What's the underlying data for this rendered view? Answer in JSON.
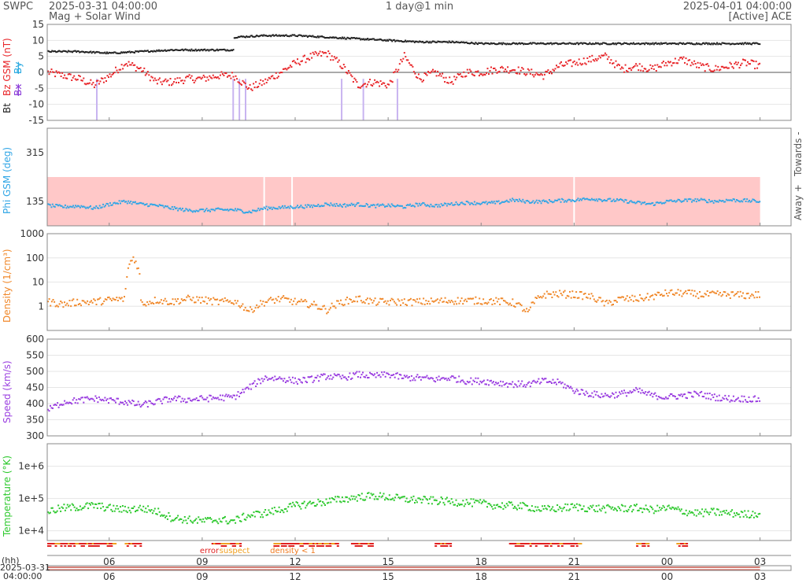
{
  "header": {
    "source": "SWPC",
    "title": "Mag + Solar Wind",
    "start_time": "2025-03-31 04:00:00",
    "range": "1 day@1 min",
    "end_time": "2025-04-01 04:00:00",
    "instrument": "[Active] ACE"
  },
  "colors": {
    "bt": "#222222",
    "bz": "#e8262a",
    "by": "#26a8e0",
    "bx": "#8a3ad8",
    "phi": "#31a6e6",
    "phi_band": "#ffc8c8",
    "density": "#f0882a",
    "speed": "#9a3ee0",
    "temperature": "#2ec92e",
    "error": "#e02020",
    "suspect": "#f0a020",
    "density_low": "#f07a20",
    "gridline": "#e6e6e6",
    "frame": "#888888"
  },
  "status_legend": {
    "error": "error",
    "suspect": "suspect",
    "density": "density < 1"
  },
  "time_axis": {
    "hh_label": "(hh)",
    "date_label": "2025-03-31",
    "time_label": "04:00:00",
    "ticks": [
      "06",
      "09",
      "12",
      "15",
      "18",
      "21",
      "00",
      "03"
    ],
    "tick_hours": [
      2,
      5,
      8,
      11,
      14,
      17,
      20,
      23
    ]
  },
  "chart_data": [
    {
      "type": "scatter",
      "id": "mag",
      "ylabel_parts": [
        "Bt",
        "Bz GSM (nT)",
        "Bx",
        "By"
      ],
      "ylim": [
        -15,
        15
      ],
      "yticks": [
        15,
        10,
        5,
        0,
        -5,
        -10,
        -15
      ],
      "series": [
        {
          "name": "Bt",
          "x": [
            0,
            1,
            2,
            3,
            4,
            5,
            6,
            6.01,
            7,
            8,
            9,
            10,
            11,
            12,
            13,
            14,
            15,
            16,
            17,
            18,
            19,
            20,
            21,
            22,
            23
          ],
          "values": [
            6.5,
            6.5,
            6,
            6.5,
            7,
            7,
            7,
            11,
            11.5,
            11.5,
            11,
            10.5,
            10,
            9.5,
            9.5,
            9,
            9,
            9,
            9,
            9,
            9,
            9,
            9,
            9,
            9
          ]
        },
        {
          "name": "Bz GSM",
          "x": [
            0,
            0.5,
            1,
            1.5,
            2,
            2.5,
            3,
            3.5,
            4,
            4.5,
            5,
            5.5,
            6,
            6.5,
            7,
            7.5,
            8,
            8.5,
            9,
            9.5,
            10,
            10.5,
            11,
            11.5,
            12,
            12.5,
            13,
            13.5,
            14,
            14.5,
            15,
            15.5,
            16,
            16.5,
            17,
            17.5,
            18,
            18.5,
            19,
            19.5,
            20,
            20.5,
            21,
            21.5,
            22,
            22.5,
            23
          ],
          "values": [
            0,
            -1,
            -2,
            -4,
            -1,
            3,
            1,
            -3,
            -3,
            -2,
            -2,
            -1,
            -1,
            -5,
            -3,
            0,
            3,
            5,
            6,
            2,
            -4,
            -3,
            -4,
            5,
            -2,
            0,
            -3,
            0,
            0,
            1,
            1,
            0,
            -1,
            2,
            3,
            4,
            5,
            1,
            2,
            1,
            3,
            4,
            2,
            1,
            2,
            3,
            2
          ]
        }
      ]
    },
    {
      "type": "scatter",
      "id": "phi",
      "ylabel": "Phi GSM (deg)",
      "right_labels": {
        "towards": "Towards -",
        "away": "Away +"
      },
      "ylim": [
        45,
        405
      ],
      "yticks": [
        315,
        135
      ],
      "band": [
        45,
        225
      ],
      "x": [
        0,
        0.5,
        1,
        1.5,
        2,
        2.5,
        3,
        3.5,
        4,
        4.5,
        5,
        5.5,
        6,
        6.5,
        7,
        7.5,
        8,
        8.5,
        9,
        9.5,
        10,
        10.5,
        11,
        11.5,
        12,
        12.5,
        13,
        13.5,
        14,
        14.5,
        15,
        15.5,
        16,
        16.5,
        17,
        17.5,
        18,
        18.5,
        19,
        19.5,
        20,
        20.5,
        21,
        21.5,
        22,
        22.5,
        23
      ],
      "values": [
        120,
        115,
        118,
        110,
        125,
        135,
        125,
        120,
        110,
        102,
        102,
        104,
        104,
        96,
        110,
        112,
        115,
        117,
        125,
        120,
        124,
        118,
        120,
        115,
        125,
        119,
        125,
        130,
        128,
        130,
        140,
        134,
        134,
        138,
        140,
        145,
        140,
        138,
        130,
        125,
        135,
        138,
        140,
        135,
        140,
        138,
        135
      ]
    },
    {
      "type": "scatter",
      "id": "density",
      "ylabel": "Density (1/cm³)",
      "yscale": "log",
      "ylim": [
        0.1,
        1000
      ],
      "yticks": [
        "1000",
        "100",
        "10",
        "1"
      ],
      "x": [
        0,
        0.5,
        1,
        1.5,
        2,
        2.5,
        2.75,
        3,
        3.5,
        4,
        4.5,
        5,
        5.5,
        6,
        6.5,
        7,
        7.5,
        8,
        8.5,
        9,
        9.5,
        10,
        10.5,
        11,
        11.5,
        12,
        12.5,
        13,
        13.5,
        14,
        14.5,
        15,
        15.5,
        16,
        16.5,
        17,
        17.5,
        18,
        18.5,
        19,
        19.5,
        20,
        20.5,
        21,
        21.5,
        22,
        22.5,
        23
      ],
      "values": [
        1.5,
        1.2,
        1.5,
        1.5,
        1.8,
        2,
        100,
        1.2,
        1.8,
        1.5,
        2,
        1.8,
        1.5,
        1.6,
        0.6,
        1.5,
        2,
        1.5,
        1.2,
        0.7,
        1.5,
        2,
        1.5,
        1.5,
        1.5,
        1.5,
        1.6,
        1.7,
        1.7,
        1.7,
        1.6,
        1.4,
        0.5,
        3,
        3.2,
        3,
        2.5,
        1.2,
        2,
        2,
        2.5,
        3.5,
        3.5,
        3,
        3,
        3,
        2.8,
        3
      ]
    },
    {
      "type": "scatter",
      "id": "speed",
      "ylabel": "Speed (km/s)",
      "ylim": [
        300,
        600
      ],
      "yticks": [
        600,
        550,
        500,
        450,
        400,
        350,
        300
      ],
      "x": [
        0,
        0.5,
        1,
        1.5,
        2,
        2.5,
        3,
        3.5,
        4,
        4.5,
        5,
        5.5,
        6,
        6.5,
        7,
        7.5,
        8,
        8.5,
        9,
        9.5,
        10,
        10.5,
        11,
        11.5,
        12,
        12.5,
        13,
        13.5,
        14,
        14.5,
        15,
        15.5,
        16,
        16.5,
        17,
        17.5,
        18,
        18.5,
        19,
        19.5,
        20,
        20.5,
        21,
        21.5,
        22,
        22.5,
        23
      ],
      "values": [
        380,
        405,
        410,
        415,
        410,
        405,
        395,
        405,
        415,
        412,
        415,
        418,
        420,
        450,
        480,
        478,
        470,
        475,
        485,
        480,
        490,
        485,
        490,
        480,
        480,
        475,
        480,
        470,
        470,
        465,
        460,
        460,
        470,
        465,
        440,
        430,
        425,
        430,
        440,
        425,
        420,
        425,
        430,
        420,
        415,
        415,
        412
      ]
    },
    {
      "type": "scatter",
      "id": "temperature",
      "ylabel": "Temperature (°K)",
      "yscale": "log",
      "ylim": [
        5000,
        5000000
      ],
      "yticks": [
        "1e+6",
        "1e+5",
        "1e+4"
      ],
      "x": [
        0,
        0.5,
        1,
        1.5,
        2,
        2.5,
        3,
        3.5,
        4,
        4.5,
        5,
        5.5,
        6,
        6.5,
        7,
        7.5,
        8,
        8.5,
        9,
        9.5,
        10,
        10.5,
        11,
        11.5,
        12,
        12.5,
        13,
        13.5,
        14,
        14.5,
        15,
        15.5,
        16,
        16.5,
        17,
        17.5,
        18,
        18.5,
        19,
        19.5,
        20,
        20.5,
        21,
        21.5,
        22,
        22.5,
        23
      ],
      "values": [
        40000,
        50000,
        55000,
        60000,
        50000,
        45000,
        50000,
        40000,
        25000,
        22000,
        20000,
        22000,
        20000,
        30000,
        35000,
        45000,
        60000,
        70000,
        80000,
        95000,
        110000,
        120000,
        110000,
        95000,
        90000,
        85000,
        80000,
        75000,
        70000,
        60000,
        60000,
        55000,
        45000,
        50000,
        55000,
        50000,
        48000,
        50000,
        50000,
        45000,
        50000,
        40000,
        35000,
        38000,
        35000,
        32000,
        35000
      ]
    }
  ]
}
